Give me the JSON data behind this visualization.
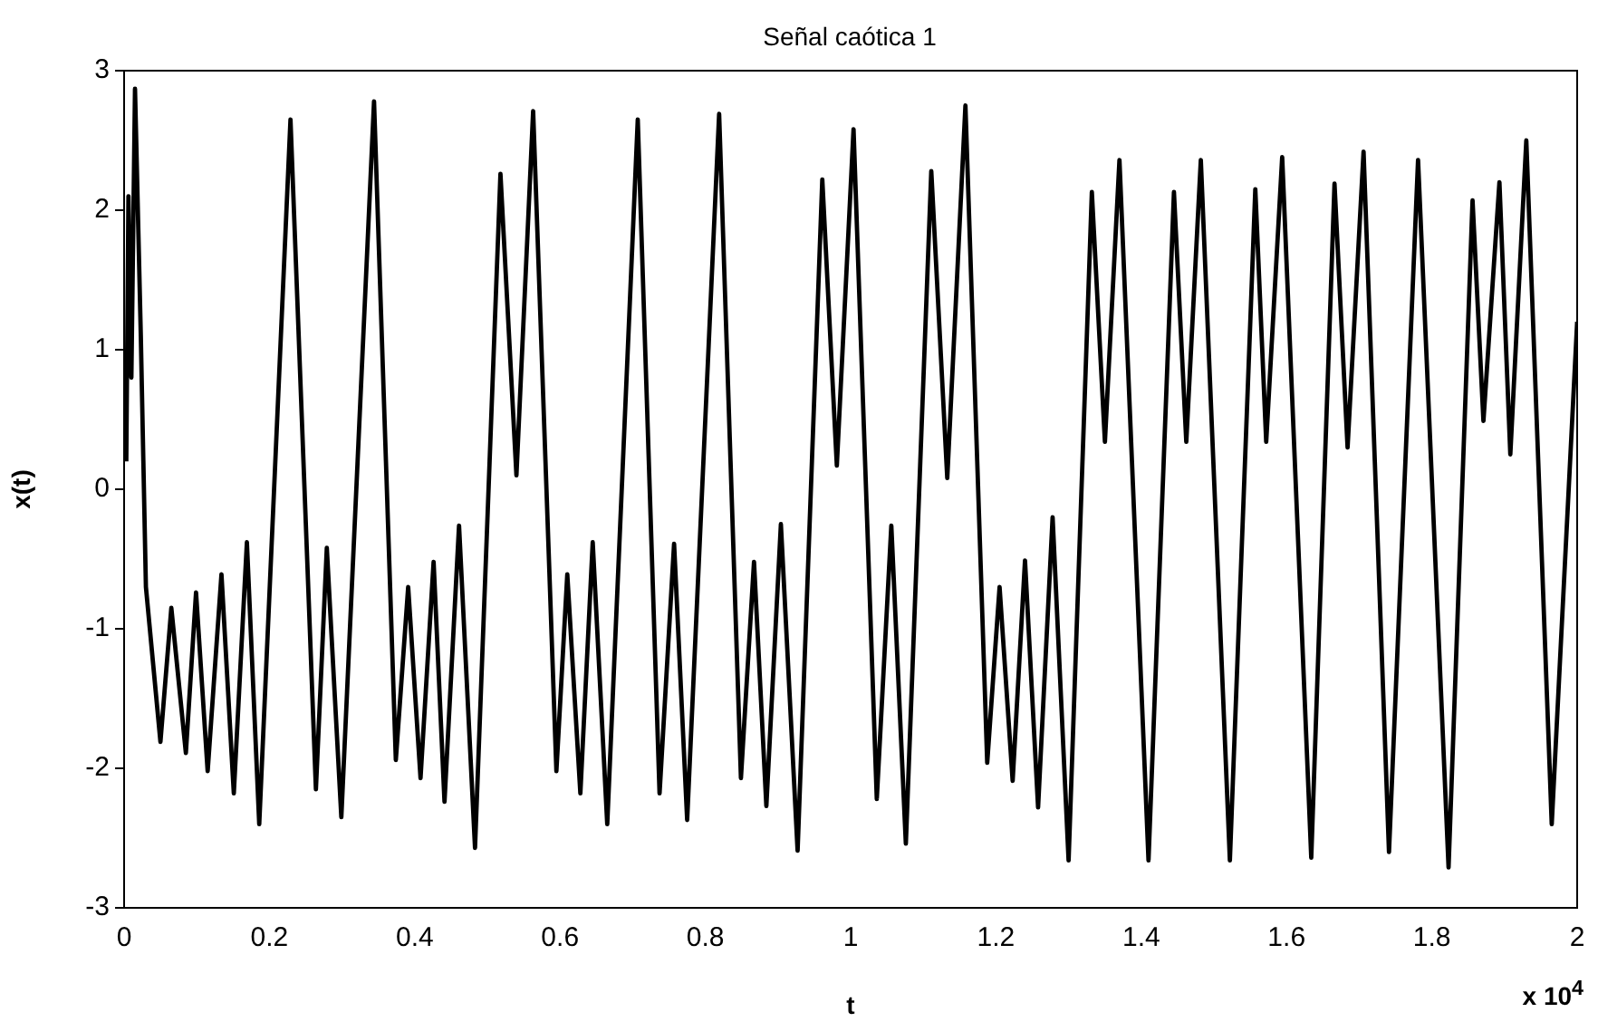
{
  "chart_data": {
    "type": "line",
    "title": "Señal caótica 1",
    "xlabel": "t",
    "ylabel": "x(t)",
    "annotations": [
      "x 10$^{4}$"
    ],
    "xlim": [
      0,
      2
    ],
    "xticks": [
      0,
      0.2,
      0.4,
      0.6,
      0.8,
      1,
      1.2,
      1.4,
      1.6,
      1.8,
      2
    ],
    "ylim": [
      -3,
      3
    ],
    "yticks": [
      -3,
      -2,
      -1,
      0,
      1,
      2,
      3
    ],
    "grid": false,
    "legend": false,
    "marker": "none",
    "line_style": "solid",
    "series": [
      {
        "color": "#000000",
        "x": [
          0.003,
          0.006,
          0.01,
          0.015,
          0.023,
          0.03,
          0.05,
          0.065,
          0.085,
          0.099,
          0.115,
          0.134,
          0.151,
          0.169,
          0.186,
          0.229,
          0.264,
          0.279,
          0.299,
          0.344,
          0.374,
          0.391,
          0.408,
          0.426,
          0.441,
          0.461,
          0.483,
          0.518,
          0.54,
          0.563,
          0.595,
          0.61,
          0.628,
          0.645,
          0.665,
          0.707,
          0.737,
          0.757,
          0.775,
          0.819,
          0.849,
          0.867,
          0.884,
          0.904,
          0.927,
          0.961,
          0.981,
          1.004,
          1.036,
          1.056,
          1.076,
          1.111,
          1.133,
          1.158,
          1.188,
          1.205,
          1.223,
          1.24,
          1.258,
          1.278,
          1.3,
          1.332,
          1.35,
          1.37,
          1.41,
          1.445,
          1.462,
          1.482,
          1.522,
          1.557,
          1.572,
          1.594,
          1.634,
          1.666,
          1.684,
          1.706,
          1.741,
          1.781,
          1.823,
          1.856,
          1.871,
          1.893,
          1.908,
          1.93,
          1.965,
          2
        ],
        "values": [
          0.2,
          2.1,
          0.8,
          2.87,
          1.1,
          -0.7,
          -1.81,
          -0.85,
          -1.89,
          -0.74,
          -2.02,
          -0.61,
          -2.18,
          -0.38,
          -2.4,
          2.65,
          -2.15,
          -0.42,
          -2.35,
          2.78,
          -1.94,
          -0.7,
          -2.07,
          -0.52,
          -2.24,
          -0.26,
          -2.57,
          2.26,
          0.1,
          2.71,
          -2.02,
          -0.61,
          -2.18,
          -0.38,
          -2.4,
          2.65,
          -2.18,
          -0.39,
          -2.37,
          2.69,
          -2.07,
          -0.52,
          -2.27,
          -0.25,
          -2.59,
          2.22,
          0.17,
          2.58,
          -2.22,
          -0.26,
          -2.54,
          2.28,
          0.08,
          2.75,
          -1.96,
          -0.7,
          -2.09,
          -0.51,
          -2.28,
          -0.2,
          -2.66,
          2.13,
          0.34,
          2.36,
          -2.66,
          2.13,
          0.34,
          2.36,
          -2.66,
          2.15,
          0.34,
          2.38,
          -2.64,
          2.19,
          0.3,
          2.42,
          -2.6,
          2.36,
          -2.71,
          2.07,
          0.49,
          2.2,
          0.25,
          2.5,
          -2.4,
          1.2
        ]
      }
    ]
  }
}
